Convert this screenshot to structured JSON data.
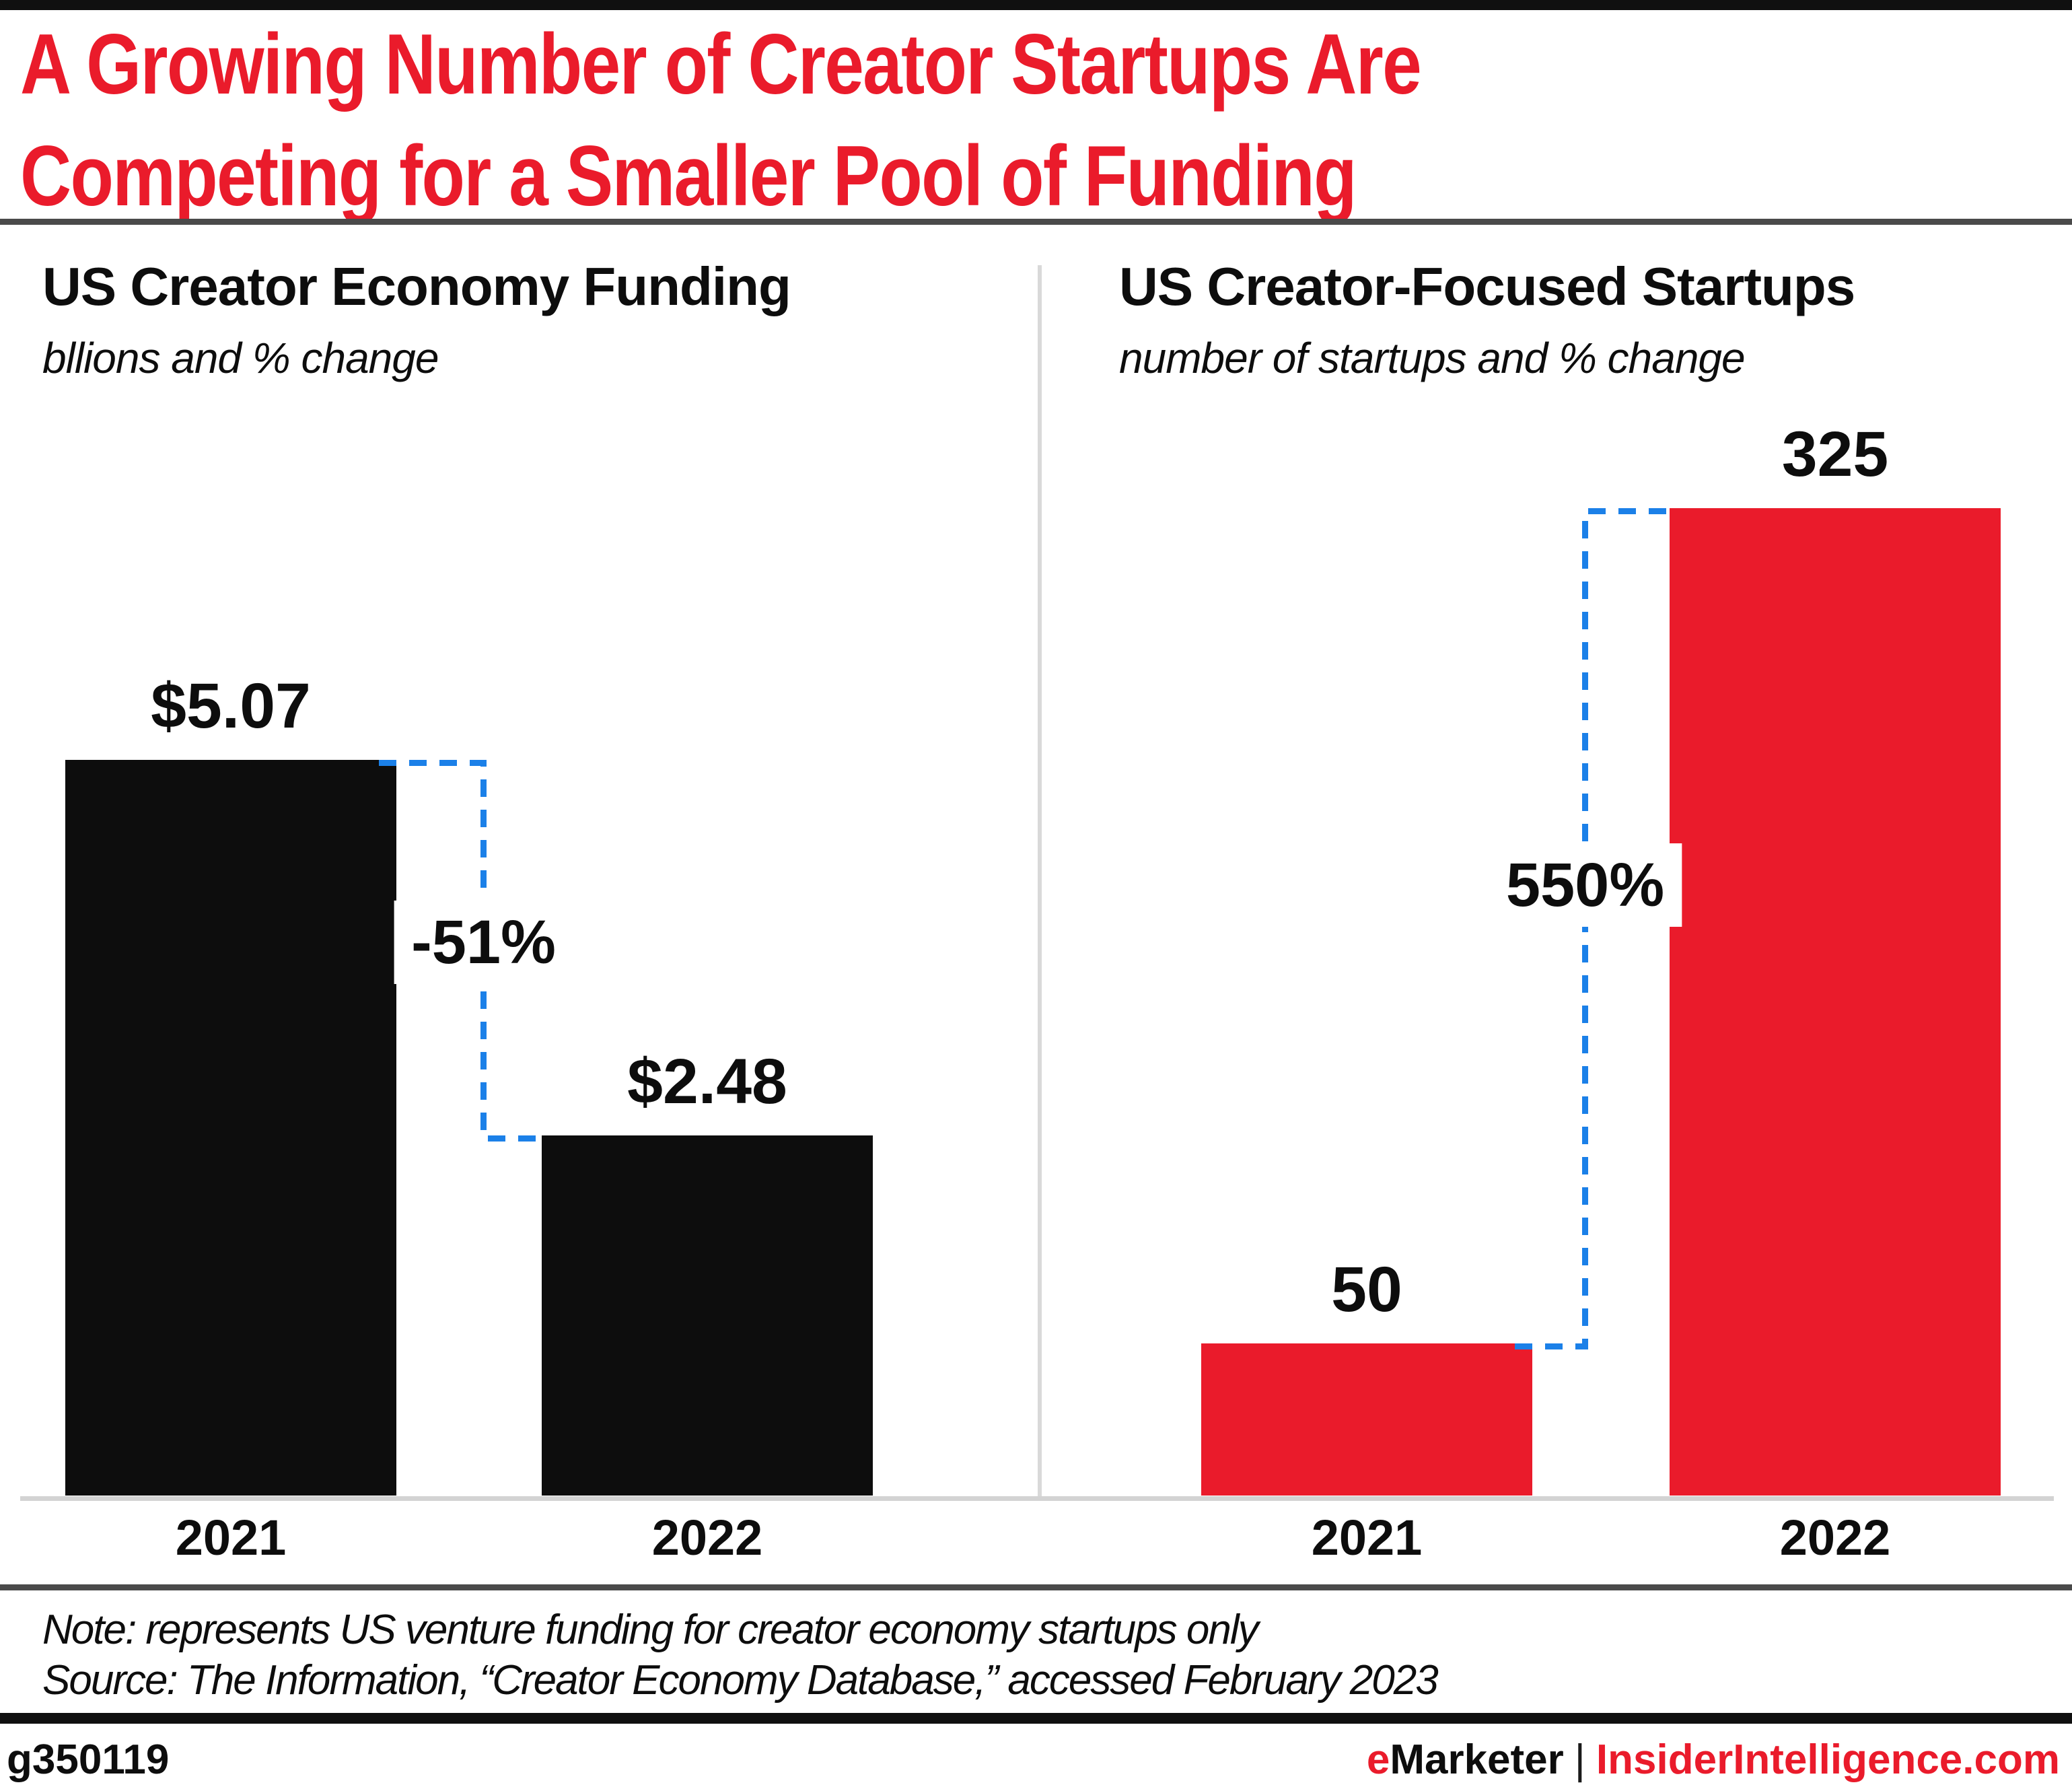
{
  "header": {
    "title": "A Growing Number of Creator Startups Are\nCompeting for a Smaller Pool of Funding"
  },
  "colors": {
    "accent_red": "#ea1b2b",
    "bar_black": "#0d0d0d",
    "connector_blue": "#1b80e8",
    "axis_gray": "#d3d3d3"
  },
  "chart_data": [
    {
      "type": "bar",
      "title": "US Creator Economy Funding",
      "subtitle": "bllions and % change",
      "categories": [
        "2021",
        "2022"
      ],
      "values": [
        5.07,
        2.48
      ],
      "value_labels": [
        "$5.07",
        "$2.48"
      ],
      "change_label": "-51%",
      "bar_color": "#0d0d0d",
      "ylim": [
        0,
        5.07
      ],
      "grid": false,
      "legend": "none"
    },
    {
      "type": "bar",
      "title": "US Creator-Focused Startups",
      "subtitle": "number of startups and % change",
      "categories": [
        "2021",
        "2022"
      ],
      "values": [
        50,
        325
      ],
      "value_labels": [
        "50",
        "325"
      ],
      "change_label": "550%",
      "bar_color": "#ea1b2b",
      "ylim": [
        0,
        325
      ],
      "grid": false,
      "legend": "none"
    }
  ],
  "footer": {
    "note": "Note: represents US venture funding for creator economy startups only",
    "source": "Source: The Information, “Creator Economy Database,” accessed February 2023",
    "chart_id": "g350119",
    "brand_prefix": "e",
    "brand_rest": "Marketer",
    "brand_separator": "|",
    "brand_site": "InsiderIntelligence.com"
  }
}
